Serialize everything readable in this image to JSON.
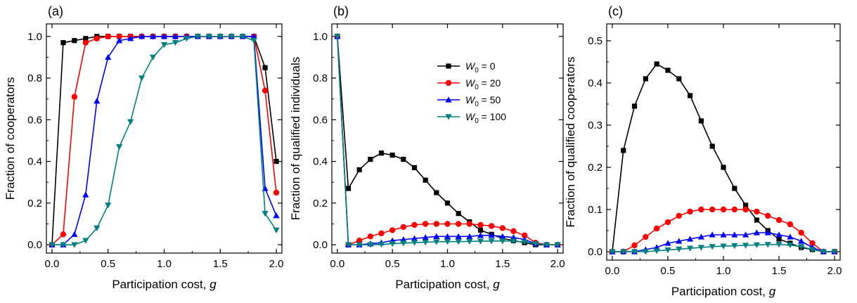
{
  "chart_data": [
    {
      "type": "line",
      "panel_label": "(a)",
      "xlabel": "Participation cost, ",
      "xlabel_var": "g",
      "ylabel": "Fraction of cooperators",
      "xlim": [
        -0.05,
        2.05
      ],
      "ylim": [
        -0.04,
        1.06
      ],
      "xticks": [
        0.0,
        0.5,
        1.0,
        1.5,
        2.0
      ],
      "xtick_labels": [
        "0.0",
        "0.5",
        "1.0",
        "1.5",
        "2.0"
      ],
      "yticks": [
        0.0,
        0.2,
        0.4,
        0.6,
        0.8,
        1.0
      ],
      "ytick_labels": [
        "0.0",
        "0.2",
        "0.4",
        "0.6",
        "0.8",
        "1.0"
      ],
      "x": [
        0.0,
        0.1,
        0.2,
        0.3,
        0.4,
        0.5,
        0.6,
        0.7,
        0.8,
        0.9,
        1.0,
        1.1,
        1.2,
        1.3,
        1.4,
        1.5,
        1.6,
        1.7,
        1.8,
        1.9,
        2.0
      ],
      "series": [
        {
          "values": [
            0.0,
            0.97,
            0.98,
            0.99,
            1.0,
            1.0,
            1.0,
            1.0,
            1.0,
            1.0,
            1.0,
            1.0,
            1.0,
            1.0,
            1.0,
            1.0,
            1.0,
            1.0,
            1.0,
            0.85,
            0.4
          ]
        },
        {
          "values": [
            0.0,
            0.05,
            0.71,
            0.97,
            0.99,
            1.0,
            1.0,
            1.0,
            1.0,
            1.0,
            1.0,
            1.0,
            1.0,
            1.0,
            1.0,
            1.0,
            1.0,
            1.0,
            1.0,
            0.74,
            0.25
          ]
        },
        {
          "values": [
            0.0,
            0.0,
            0.05,
            0.24,
            0.69,
            0.9,
            0.98,
            0.99,
            1.0,
            1.0,
            1.0,
            1.0,
            1.0,
            1.0,
            1.0,
            1.0,
            1.0,
            1.0,
            1.0,
            0.27,
            0.14
          ]
        },
        {
          "values": [
            0.0,
            0.0,
            0.0,
            0.02,
            0.08,
            0.19,
            0.47,
            0.59,
            0.8,
            0.9,
            0.96,
            0.97,
            0.99,
            1.0,
            1.0,
            1.0,
            1.0,
            1.0,
            0.98,
            0.15,
            0.07
          ]
        }
      ]
    },
    {
      "type": "line",
      "panel_label": "(b)",
      "xlabel": "Participation cost, ",
      "xlabel_var": "g",
      "ylabel": "Fraction of qualified individuals",
      "xlim": [
        -0.05,
        2.05
      ],
      "ylim": [
        -0.04,
        1.06
      ],
      "xticks": [
        0.0,
        0.5,
        1.0,
        1.5,
        2.0
      ],
      "xtick_labels": [
        "0.0",
        "0.5",
        "1.0",
        "1.5",
        "2.0"
      ],
      "yticks": [
        0.0,
        0.2,
        0.4,
        0.6,
        0.8,
        1.0
      ],
      "ytick_labels": [
        "0.0",
        "0.2",
        "0.4",
        "0.6",
        "0.8",
        "1.0"
      ],
      "x": [
        0.0,
        0.1,
        0.2,
        0.3,
        0.4,
        0.5,
        0.6,
        0.7,
        0.8,
        0.9,
        1.0,
        1.1,
        1.2,
        1.3,
        1.4,
        1.5,
        1.6,
        1.7,
        1.8,
        1.9,
        2.0
      ],
      "legend": {
        "placement": "upper-center",
        "entries": [
          {
            "var": "W",
            "sub": "0",
            "text": " = 0"
          },
          {
            "var": "W",
            "sub": "0",
            "text": " = 20"
          },
          {
            "var": "W",
            "sub": "0",
            "text": " = 50"
          },
          {
            "var": "W",
            "sub": "0",
            "text": " = 100"
          }
        ]
      },
      "series": [
        {
          "values": [
            1.0,
            0.27,
            0.36,
            0.41,
            0.44,
            0.43,
            0.41,
            0.37,
            0.31,
            0.25,
            0.2,
            0.15,
            0.11,
            0.07,
            0.05,
            0.03,
            0.02,
            0.01,
            0.0,
            0.0,
            0.0
          ]
        },
        {
          "values": [
            1.0,
            0.0,
            0.02,
            0.04,
            0.055,
            0.07,
            0.085,
            0.095,
            0.1,
            0.1,
            0.1,
            0.1,
            0.1,
            0.095,
            0.09,
            0.08,
            0.065,
            0.045,
            0.01,
            0.0,
            0.0
          ]
        },
        {
          "values": [
            1.0,
            0.0,
            0.0,
            0.005,
            0.01,
            0.02,
            0.025,
            0.03,
            0.035,
            0.04,
            0.04,
            0.04,
            0.04,
            0.045,
            0.045,
            0.04,
            0.035,
            0.025,
            0.005,
            0.0,
            0.0
          ]
        },
        {
          "values": [
            1.0,
            0.0,
            0.0,
            0.0,
            0.002,
            0.005,
            0.008,
            0.01,
            0.012,
            0.014,
            0.015,
            0.015,
            0.016,
            0.017,
            0.018,
            0.018,
            0.017,
            0.013,
            0.005,
            0.0,
            0.0
          ]
        }
      ]
    },
    {
      "type": "line",
      "panel_label": "(c)",
      "xlabel": "Participation cost, ",
      "xlabel_var": "g",
      "ylabel": "Fraction of qualified cooperators",
      "xlim": [
        -0.05,
        2.05
      ],
      "ylim": [
        -0.02,
        0.54
      ],
      "xticks": [
        0.0,
        0.5,
        1.0,
        1.5,
        2.0
      ],
      "xtick_labels": [
        "0.0",
        "0.5",
        "1.0",
        "1.5",
        "2.0"
      ],
      "yticks": [
        0.0,
        0.1,
        0.2,
        0.3,
        0.4,
        0.5
      ],
      "ytick_labels": [
        "0.0",
        "0.1",
        "0.2",
        "0.3",
        "0.4",
        "0.5"
      ],
      "x": [
        0.0,
        0.1,
        0.2,
        0.3,
        0.4,
        0.5,
        0.6,
        0.7,
        0.8,
        0.9,
        1.0,
        1.1,
        1.2,
        1.3,
        1.4,
        1.5,
        1.6,
        1.7,
        1.8,
        1.9,
        2.0
      ],
      "series": [
        {
          "values": [
            0.0,
            0.24,
            0.345,
            0.41,
            0.445,
            0.43,
            0.41,
            0.37,
            0.31,
            0.25,
            0.2,
            0.15,
            0.11,
            0.075,
            0.05,
            0.03,
            0.02,
            0.01,
            0.005,
            0.0,
            0.0
          ]
        },
        {
          "values": [
            0.0,
            0.0,
            0.015,
            0.035,
            0.055,
            0.07,
            0.085,
            0.095,
            0.1,
            0.1,
            0.1,
            0.1,
            0.1,
            0.095,
            0.085,
            0.075,
            0.065,
            0.045,
            0.02,
            0.0,
            0.0
          ]
        },
        {
          "values": [
            0.0,
            0.0,
            0.0,
            0.005,
            0.01,
            0.02,
            0.025,
            0.03,
            0.035,
            0.04,
            0.04,
            0.04,
            0.04,
            0.045,
            0.045,
            0.04,
            0.035,
            0.025,
            0.01,
            0.0,
            0.0
          ]
        },
        {
          "values": [
            0.0,
            0.0,
            0.0,
            0.0,
            0.002,
            0.004,
            0.006,
            0.008,
            0.01,
            0.012,
            0.013,
            0.014,
            0.015,
            0.016,
            0.017,
            0.017,
            0.016,
            0.012,
            0.005,
            0.0,
            0.0
          ]
        }
      ]
    }
  ],
  "series_style": [
    {
      "color": "#000000",
      "marker": "square"
    },
    {
      "color": "#ff0000",
      "marker": "circle"
    },
    {
      "color": "#0000ff",
      "marker": "triangle-up"
    },
    {
      "color": "#008080",
      "marker": "triangle-down"
    }
  ]
}
